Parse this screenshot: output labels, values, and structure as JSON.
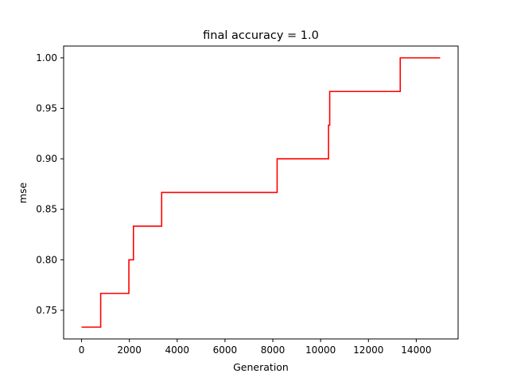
{
  "chart_data": {
    "type": "line",
    "title": "final accuracy = 1.0",
    "xlabel": "Generation",
    "ylabel": "mse",
    "xlim": [
      -750,
      15750
    ],
    "ylim": [
      0.7216,
      1.0117
    ],
    "x_ticks": [
      0,
      2000,
      4000,
      6000,
      8000,
      10000,
      12000,
      14000
    ],
    "y_ticks": [
      0.75,
      0.8,
      0.85,
      0.9,
      0.95,
      1.0
    ],
    "grid": false,
    "legend": "none",
    "series": [
      {
        "color": "#ff0000",
        "step": true,
        "points": [
          [
            0,
            0.7333
          ],
          [
            800,
            0.7333
          ],
          [
            800,
            0.7667
          ],
          [
            1980,
            0.7667
          ],
          [
            1980,
            0.8
          ],
          [
            2170,
            0.8
          ],
          [
            2170,
            0.8333
          ],
          [
            3350,
            0.8333
          ],
          [
            3350,
            0.8667
          ],
          [
            8180,
            0.8667
          ],
          [
            8180,
            0.9
          ],
          [
            10330,
            0.9
          ],
          [
            10330,
            0.9333
          ],
          [
            10380,
            0.9333
          ],
          [
            10380,
            0.9667
          ],
          [
            13330,
            0.9667
          ],
          [
            13330,
            1.0
          ],
          [
            15000,
            1.0
          ]
        ]
      }
    ]
  }
}
